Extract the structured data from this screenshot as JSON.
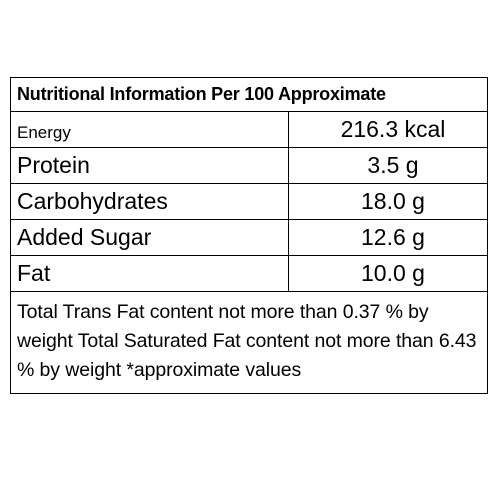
{
  "table": {
    "title": "Nutritional Information Per 100 Approximate",
    "rows": [
      {
        "name": "Energy",
        "value": "216.3 kcal"
      },
      {
        "name": "Protein",
        "value": "3.5 g"
      },
      {
        "name": "Carbohydrates",
        "value": "18.0 g"
      },
      {
        "name": "Added Sugar",
        "value": "12.6 g"
      },
      {
        "name": "Fat",
        "value": "10.0 g"
      }
    ],
    "note": "Total Trans Fat content not more than 0.37 % by weight Total Saturated Fat content not more than 6.43 % by weight *approximate values"
  }
}
